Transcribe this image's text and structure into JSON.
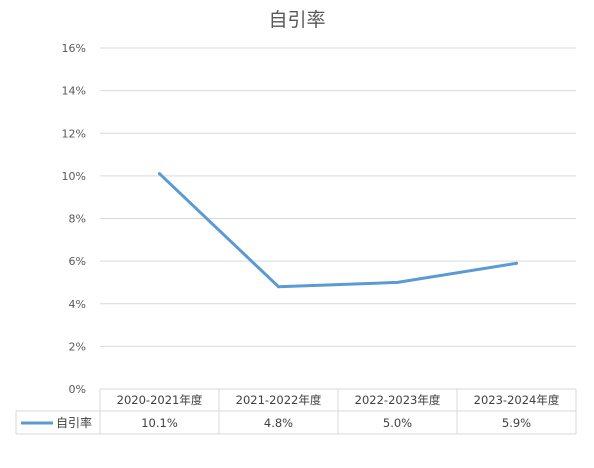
{
  "chart_data": {
    "type": "line",
    "title": "自引率",
    "categories": [
      "2020-2021年度",
      "2021-2022年度",
      "2022-2023年度",
      "2023-2024年度"
    ],
    "series": [
      {
        "name": "自引率",
        "values": [
          10.1,
          4.8,
          5.0,
          5.9
        ],
        "labels": [
          "10.1%",
          "4.8%",
          "5.0%",
          "5.9%"
        ],
        "color": "#5B9BD5"
      }
    ],
    "ylim": [
      0,
      16
    ],
    "yticks": [
      "0%",
      "2%",
      "4%",
      "6%",
      "8%",
      "10%",
      "12%",
      "14%",
      "16%"
    ],
    "grid": true,
    "legend": "data-table"
  }
}
